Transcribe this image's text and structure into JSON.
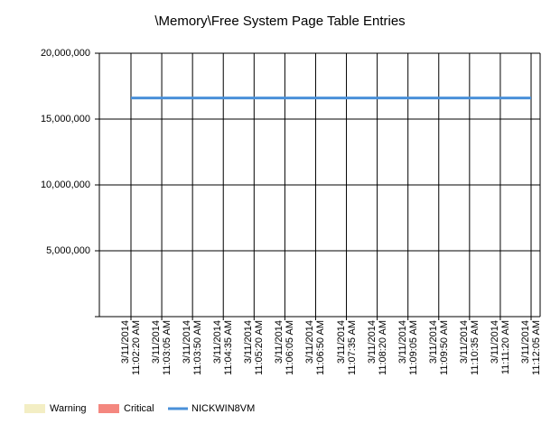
{
  "chart_data": {
    "type": "line",
    "title": "\\Memory\\Free System Page Table Entries",
    "categories": [
      "3/11/2014\n11:02:20 AM",
      "3/11/2014\n11:03:05 AM",
      "3/11/2014\n11:03:50 AM",
      "3/11/2014\n11:04:35 AM",
      "3/11/2014\n11:05:20 AM",
      "3/11/2014\n11:06:05 AM",
      "3/11/2014\n11:06:50 AM",
      "3/11/2014\n11:07:35 AM",
      "3/11/2014\n11:08:20 AM",
      "3/11/2014\n11:09:05 AM",
      "3/11/2014\n11:09:50 AM",
      "3/11/2014\n11:10:35 AM",
      "3/11/2014\n11:11:20 AM",
      "3/11/2014\n11:12:05 AM"
    ],
    "series": [
      {
        "name": "NICKWIN8VM",
        "color": "#4a90d9",
        "values": [
          16600000,
          16600000,
          16600000,
          16600000,
          16600000,
          16600000,
          16600000,
          16600000,
          16600000,
          16600000,
          16600000,
          16600000,
          16600000,
          16600000
        ]
      }
    ],
    "legend_items": [
      {
        "name": "Warning",
        "color": "#f3eec4"
      },
      {
        "name": "Critical",
        "color": "#f4877f"
      }
    ],
    "ylim": [
      0,
      20000000
    ],
    "yticks": [
      {
        "value": 5000000,
        "label": "5,000,000"
      },
      {
        "value": 10000000,
        "label": "10,000,000"
      },
      {
        "value": 15000000,
        "label": "15,000,000"
      },
      {
        "value": 20000000,
        "label": "20,000,000"
      }
    ],
    "grid": true
  }
}
